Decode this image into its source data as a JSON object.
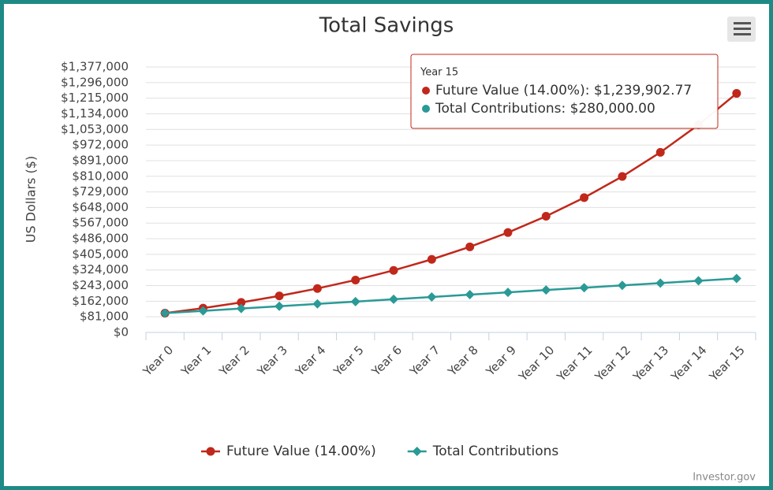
{
  "chart_data": {
    "type": "line",
    "title": "Total Savings",
    "y_label": "US Dollars ($)",
    "categories": [
      "Year 0",
      "Year 1",
      "Year 2",
      "Year 3",
      "Year 4",
      "Year 5",
      "Year 6",
      "Year 7",
      "Year 8",
      "Year 9",
      "Year 10",
      "Year 11",
      "Year 12",
      "Year 13",
      "Year 14",
      "Year 15"
    ],
    "series": [
      {
        "name": "Future Value (14.00%)",
        "color": "#c0281b",
        "marker": "circle",
        "values": [
          100000,
          126000,
          155640,
          189429.6,
          227949.74,
          271862.7,
          321923.48,
          378992.76,
          444051.75,
          518218.99,
          602769.65,
          699157.4,
          809039.44,
          934304.96,
          1077107.65,
          1239902.77
        ]
      },
      {
        "name": "Total Contributions",
        "color": "#2a9a96",
        "marker": "diamond",
        "values": [
          100000,
          112000,
          124000,
          136000,
          148000,
          160000,
          172000,
          184000,
          196000,
          208000,
          220000,
          232000,
          244000,
          256000,
          268000,
          280000
        ]
      }
    ],
    "ylim": [
      0,
      1377000
    ],
    "yticks": [
      {
        "value": 0,
        "label": "$0"
      },
      {
        "value": 81000,
        "label": "$81,000"
      },
      {
        "value": 162000,
        "label": "$162,000"
      },
      {
        "value": 243000,
        "label": "$243,000"
      },
      {
        "value": 324000,
        "label": "$324,000"
      },
      {
        "value": 405000,
        "label": "$405,000"
      },
      {
        "value": 486000,
        "label": "$486,000"
      },
      {
        "value": 567000,
        "label": "$567,000"
      },
      {
        "value": 648000,
        "label": "$648,000"
      },
      {
        "value": 729000,
        "label": "$729,000"
      },
      {
        "value": 810000,
        "label": "$810,000"
      },
      {
        "value": 891000,
        "label": "$891,000"
      },
      {
        "value": 972000,
        "label": "$972,000"
      },
      {
        "value": 1053000,
        "label": "$1,053,000"
      },
      {
        "value": 1134000,
        "label": "$1,134,000"
      },
      {
        "value": 1215000,
        "label": "$1,215,000"
      },
      {
        "value": 1296000,
        "label": "$1,296,000"
      },
      {
        "value": 1377000,
        "label": "$1,377,000"
      }
    ],
    "grid": true,
    "tooltip": {
      "title": "Year 15",
      "lines": [
        "Future Value (14.00%): $1,239,902.77",
        "Total Contributions: $280,000.00"
      ]
    },
    "credits": "Investor.gov"
  }
}
